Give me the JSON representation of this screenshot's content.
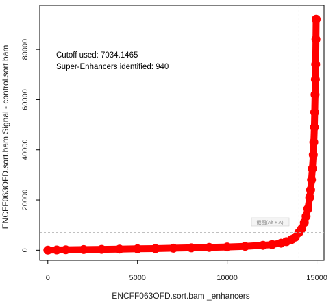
{
  "chart_data": {
    "type": "scatter",
    "xlabel": "ENCFF063OFD.sort.bam _enhancers",
    "ylabel": "ENCFF063OFD.sort.bam  Signal - control.sort.bam",
    "xlim": [
      -450,
      15400
    ],
    "ylim": [
      -4000,
      97500
    ],
    "x_ticks": [
      0,
      5000,
      10000,
      15000
    ],
    "y_ticks": [
      0,
      20000,
      40000,
      60000,
      80000
    ],
    "x_tick_labels": [
      "0",
      "5000",
      "10000",
      "15000"
    ],
    "y_tick_labels": [
      "0",
      "20000",
      "40000",
      "60000",
      "80000"
    ],
    "cutoff_x": 14000,
    "cutoff_y": 7034.1465,
    "series": [
      {
        "x": [
          0,
          500,
          1000,
          2000,
          3000,
          4000,
          5000,
          6000,
          7000,
          8000,
          9000,
          10000,
          11000,
          12000,
          12500,
          13000,
          13300,
          13600,
          13800,
          14000,
          14150,
          14300,
          14400,
          14500,
          14600,
          14650,
          14700,
          14750,
          14800,
          14830,
          14860,
          14880,
          14900,
          14920,
          14935,
          14950,
          14960
        ],
        "y": [
          20,
          100,
          150,
          250,
          350,
          450,
          550,
          650,
          800,
          950,
          1100,
          1300,
          1550,
          1950,
          2250,
          2800,
          3400,
          4300,
          5200,
          7034,
          8500,
          11000,
          13500,
          16500,
          21000,
          24000,
          28000,
          32500,
          38000,
          43000,
          49000,
          55000,
          62000,
          68000,
          74000,
          84000,
          92000
        ],
        "color": "#ff0000"
      }
    ],
    "annotations": [
      "Cutoff used:  7034.1465",
      "Super-Enhancers identified:  940"
    ]
  },
  "overlay": {
    "tooltip_text": "截图(Alt + A)"
  }
}
